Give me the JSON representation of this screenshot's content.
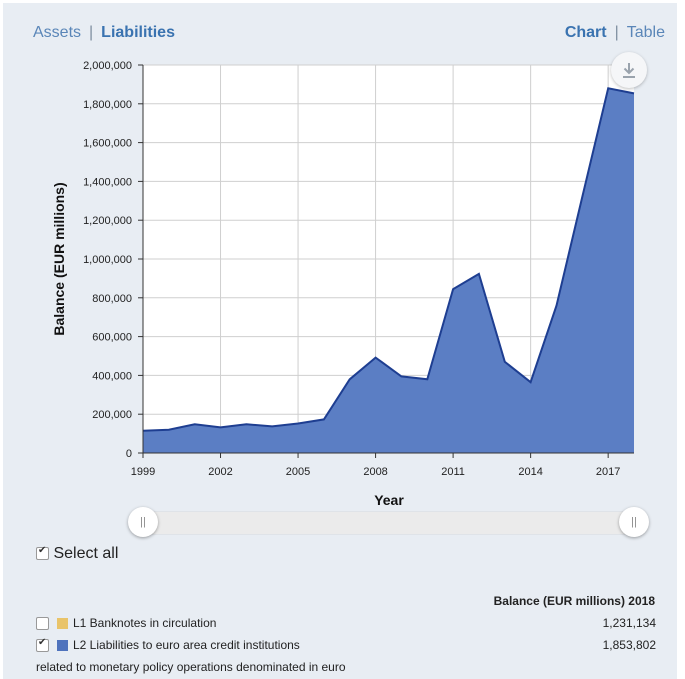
{
  "tabs": {
    "assets": "Assets",
    "liabilities": "Liabilities",
    "chart": "Chart",
    "table": "Table",
    "separator": "|"
  },
  "colors": {
    "area_fill": "#5b7ec4",
    "area_line": "#1e3e91",
    "legend_l1": "#e9c46a",
    "legend_l2": "#4f73bd",
    "accent": "#3a73b0"
  },
  "chart_data": {
    "type": "area",
    "xlabel": "Year",
    "ylabel": "Balance (EUR millions)",
    "xlim": [
      1999,
      2018
    ],
    "ylim": [
      0,
      2000000
    ],
    "x_ticks": [
      "1999",
      "2002",
      "2005",
      "2008",
      "2011",
      "2014",
      "2017"
    ],
    "x_tick_values": [
      1999,
      2002,
      2005,
      2008,
      2011,
      2014,
      2017
    ],
    "y_ticks": [
      "0",
      "200,000",
      "400,000",
      "600,000",
      "800,000",
      "1,000,000",
      "1,200,000",
      "1,400,000",
      "1,600,000",
      "1,800,000",
      "2,000,000"
    ],
    "y_tick_values": [
      0,
      200000,
      400000,
      600000,
      800000,
      1000000,
      1200000,
      1400000,
      1600000,
      1800000,
      2000000
    ],
    "grid": true,
    "series": [
      {
        "name": "L2 Liabilities to euro area credit institutions",
        "x": [
          1999,
          2000,
          2001,
          2002,
          2003,
          2004,
          2005,
          2006,
          2007,
          2008,
          2009,
          2010,
          2011,
          2012,
          2013,
          2014,
          2015,
          2016,
          2017,
          2018
        ],
        "values": [
          115000,
          120000,
          148000,
          132000,
          148000,
          137000,
          152000,
          173000,
          380000,
          492000,
          395000,
          380000,
          845000,
          923000,
          470000,
          365000,
          760000,
          1320000,
          1880000,
          1853802
        ]
      }
    ]
  },
  "controls": {
    "select_all_label": "Select all",
    "slider_grip": "||"
  },
  "legend": {
    "header": "Balance (EUR millions) 2018",
    "items": [
      {
        "label": "L1 Banknotes in circulation",
        "value": "1,231,134",
        "checked": false
      },
      {
        "label": "L2 Liabilities to euro area credit institutions",
        "value": "1,853,802",
        "checked": true
      }
    ],
    "note": "related to monetary policy operations denominated in euro"
  }
}
